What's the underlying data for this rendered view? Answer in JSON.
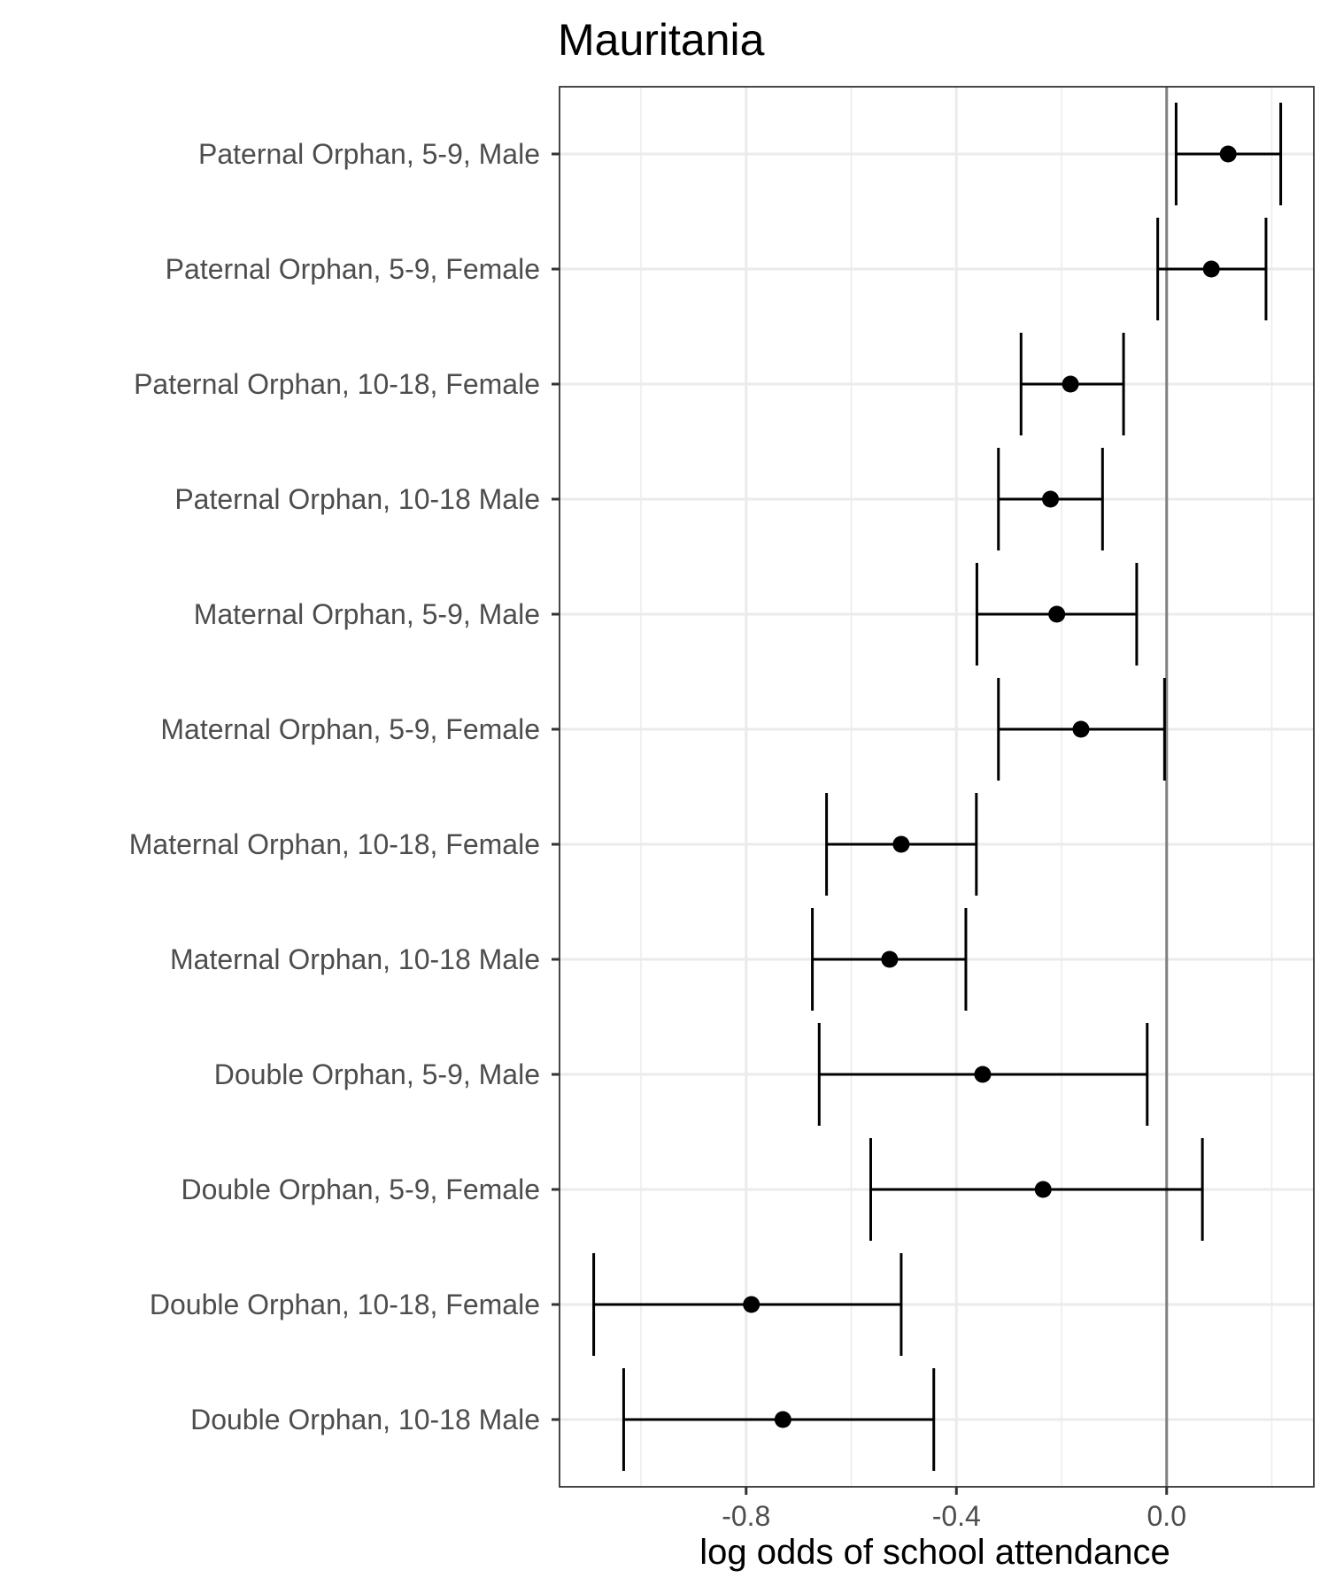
{
  "chart_data": {
    "type": "errorbar",
    "title": "Mauritania",
    "xlabel": "log odds of school attendance",
    "ylabel": "",
    "xlim": [
      -1.155,
      0.28
    ],
    "xticks": [
      -0.8,
      -0.4,
      0.0
    ],
    "xtick_labels": [
      "-0.8",
      "-0.4",
      "0.0"
    ],
    "minor_xticks": [
      -1.0,
      -0.6,
      -0.2,
      0.2
    ],
    "grid": true,
    "reference_line_x": 0.0,
    "colors": {
      "points": "#000000",
      "errorbars": "#000000",
      "reference_line": "#808080",
      "grid": "#ebebeb",
      "panel_border": "#333333"
    },
    "categories": [
      "Paternal Orphan, 5-9, Male",
      "Paternal Orphan, 5-9, Female",
      "Paternal Orphan, 10-18, Female",
      "Paternal Orphan, 10-18 Male",
      "Maternal Orphan, 5-9, Male",
      "Maternal Orphan, 5-9, Female",
      "Maternal Orphan, 10-18, Female",
      "Maternal Orphan, 10-18 Male",
      "Double Orphan, 5-9, Male",
      "Double Orphan, 5-9, Female",
      "Double Orphan, 10-18, Female",
      "Double Orphan, 10-18 Male"
    ],
    "estimates": [
      0.117,
      0.085,
      -0.183,
      -0.221,
      -0.209,
      -0.163,
      -0.505,
      -0.527,
      -0.35,
      -0.235,
      -0.79,
      -0.73
    ],
    "lower": [
      0.018,
      -0.017,
      -0.277,
      -0.32,
      -0.361,
      -0.32,
      -0.647,
      -0.674,
      -0.661,
      -0.563,
      -1.09,
      -1.033
    ],
    "upper": [
      0.217,
      0.189,
      -0.082,
      -0.122,
      -0.057,
      -0.004,
      -0.362,
      -0.382,
      -0.037,
      0.068,
      -0.505,
      -0.443
    ]
  }
}
